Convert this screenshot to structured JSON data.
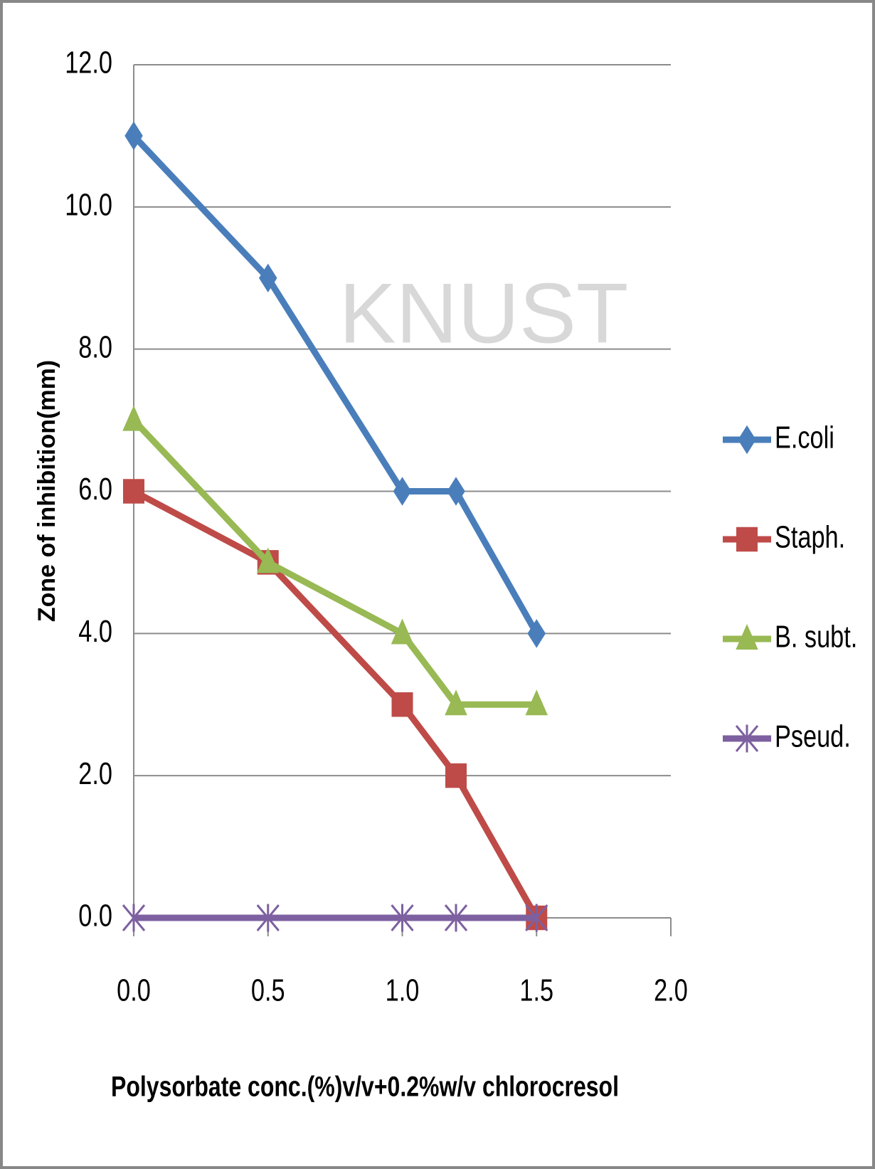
{
  "chart_data": {
    "type": "line",
    "watermark": "KNUST",
    "x_label": "Polysorbate conc.(%)v/v+0.2%w/v chlorocresol",
    "y_label": "Zone of inhibition(mm)",
    "x": [
      0,
      0.5,
      1.0,
      1.2,
      1.5
    ],
    "series": [
      {
        "name": "E.coli",
        "color": "#4a7ebb",
        "marker": "diamond",
        "values": [
          11,
          9,
          6,
          6,
          4
        ]
      },
      {
        "name": "Staph.",
        "color": "#be4b48",
        "marker": "square",
        "values": [
          6,
          5,
          3,
          2,
          0
        ]
      },
      {
        "name": "B. subt.",
        "color": "#98b954",
        "marker": "triangle",
        "values": [
          7,
          5,
          4,
          3,
          3
        ]
      },
      {
        "name": "Pseud.",
        "color": "#7d60a0",
        "marker": "star",
        "values": [
          0,
          0,
          0,
          0,
          0
        ]
      }
    ],
    "xlim": [
      0,
      2
    ],
    "xticks": [
      {
        "value": 0,
        "label": "0.0"
      },
      {
        "value": 0.5,
        "label": "0.5"
      },
      {
        "value": 1,
        "label": "1.0"
      },
      {
        "value": 1.5,
        "label": "1.5"
      },
      {
        "value": 2,
        "label": "2.0"
      }
    ],
    "ylim": [
      0,
      12
    ],
    "yticks": [
      {
        "value": 0,
        "label": "0.0"
      },
      {
        "value": 2,
        "label": "2.0"
      },
      {
        "value": 4,
        "label": "4.0"
      },
      {
        "value": 6,
        "label": "6.0"
      },
      {
        "value": 8,
        "label": "8.0"
      },
      {
        "value": 10,
        "label": "10.0"
      },
      {
        "value": 12,
        "label": "12.0"
      }
    ],
    "grid": true,
    "legend": "right"
  }
}
